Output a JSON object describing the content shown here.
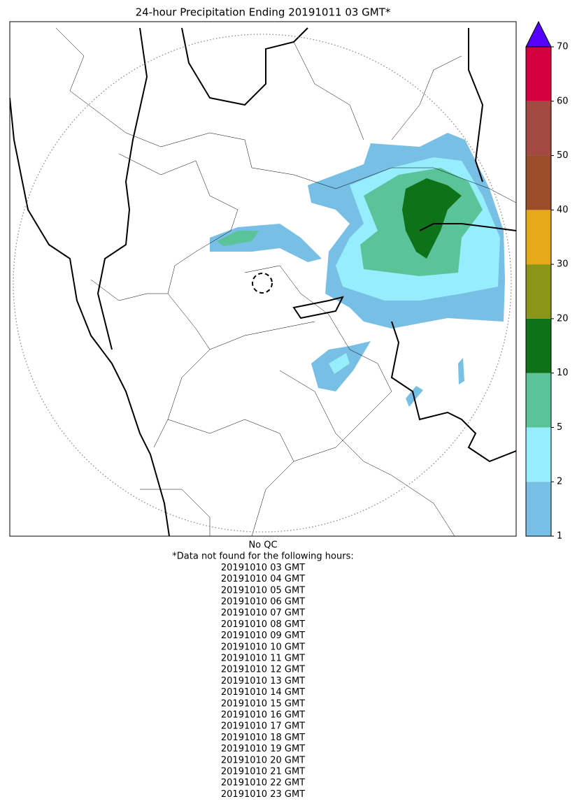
{
  "title": "24-hour Precipitation Ending 20191011 03 GMT*",
  "colorbar": {
    "ticks": [
      1,
      2,
      5,
      10,
      20,
      30,
      40,
      50,
      60,
      70
    ],
    "colors": [
      "#77bfe4",
      "#96eefc",
      "#5ac39a",
      "#0e7318",
      "#8b9517",
      "#e6a918",
      "#9b4d29",
      "#a34a42",
      "#d5003f"
    ],
    "extend_color": "#5500ff"
  },
  "notes": [
    "No QC",
    "*Data not found for the following hours:",
    "20191010 03 GMT",
    "20191010 04 GMT",
    "20191010 05 GMT",
    "20191010 06 GMT",
    "20191010 07 GMT",
    "20191010 08 GMT",
    "20191010 09 GMT",
    "20191010 10 GMT",
    "20191010 11 GMT",
    "20191010 12 GMT",
    "20191010 13 GMT",
    "20191010 14 GMT",
    "20191010 15 GMT",
    "20191010 16 GMT",
    "20191010 17 GMT",
    "20191010 18 GMT",
    "20191010 19 GMT",
    "20191010 20 GMT",
    "20191010 21 GMT",
    "20191010 22 GMT",
    "20191010 23 GMT"
  ]
}
